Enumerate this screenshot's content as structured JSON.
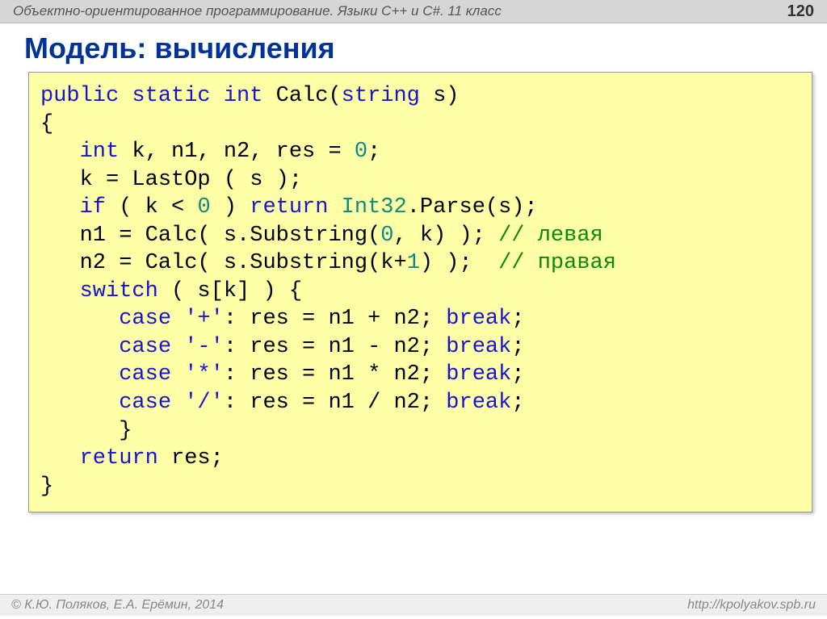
{
  "header": {
    "subject": "Объектно-ориентированное программирование. Языки C++ и C#. 11 класс",
    "page_number": "120"
  },
  "title": "Модель: вычисления",
  "code": {
    "tokens": [
      {
        "t": "public",
        "c": "kw"
      },
      {
        "t": " "
      },
      {
        "t": "static",
        "c": "kw"
      },
      {
        "t": " "
      },
      {
        "t": "int",
        "c": "kw"
      },
      {
        "t": " Calc("
      },
      {
        "t": "string",
        "c": "kw"
      },
      {
        "t": " s)\n"
      },
      {
        "t": "{\n"
      },
      {
        "t": "   "
      },
      {
        "t": "int",
        "c": "kw"
      },
      {
        "t": " k, n1, n2, res = "
      },
      {
        "t": "0",
        "c": "num"
      },
      {
        "t": ";\n"
      },
      {
        "t": "   k = LastOp ( s );\n"
      },
      {
        "t": "   "
      },
      {
        "t": "if",
        "c": "kw"
      },
      {
        "t": " ( k < "
      },
      {
        "t": "0",
        "c": "num"
      },
      {
        "t": " ) "
      },
      {
        "t": "return",
        "c": "kw"
      },
      {
        "t": " "
      },
      {
        "t": "Int32",
        "c": "cls"
      },
      {
        "t": ".Parse(s);\n"
      },
      {
        "t": "   n1 = Calc( s.Substring("
      },
      {
        "t": "0",
        "c": "num"
      },
      {
        "t": ", k) ); "
      },
      {
        "t": "// левая",
        "c": "comment"
      },
      {
        "t": "\n"
      },
      {
        "t": "   n2 = Calc( s.Substring(k+"
      },
      {
        "t": "1",
        "c": "num"
      },
      {
        "t": ") );  "
      },
      {
        "t": "// правая",
        "c": "comment"
      },
      {
        "t": "\n"
      },
      {
        "t": "   "
      },
      {
        "t": "switch",
        "c": "kw"
      },
      {
        "t": " ( s[k] ) {\n"
      },
      {
        "t": "      "
      },
      {
        "t": "case",
        "c": "kw"
      },
      {
        "t": " "
      },
      {
        "t": "'+'",
        "c": "str"
      },
      {
        "t": ": res = n1 + n2; "
      },
      {
        "t": "break",
        "c": "kw"
      },
      {
        "t": ";\n"
      },
      {
        "t": "      "
      },
      {
        "t": "case",
        "c": "kw"
      },
      {
        "t": " "
      },
      {
        "t": "'-'",
        "c": "str"
      },
      {
        "t": ": res = n1 - n2; "
      },
      {
        "t": "break",
        "c": "kw"
      },
      {
        "t": ";\n"
      },
      {
        "t": "      "
      },
      {
        "t": "case",
        "c": "kw"
      },
      {
        "t": " "
      },
      {
        "t": "'*'",
        "c": "str"
      },
      {
        "t": ": res = n1 * n2; "
      },
      {
        "t": "break",
        "c": "kw"
      },
      {
        "t": ";\n"
      },
      {
        "t": "      "
      },
      {
        "t": "case",
        "c": "kw"
      },
      {
        "t": " "
      },
      {
        "t": "'/'",
        "c": "str"
      },
      {
        "t": ": res = n1 / n2; "
      },
      {
        "t": "break",
        "c": "kw"
      },
      {
        "t": ";\n"
      },
      {
        "t": "      }\n"
      },
      {
        "t": "   "
      },
      {
        "t": "return",
        "c": "kw"
      },
      {
        "t": " res;\n"
      },
      {
        "t": "}"
      }
    ]
  },
  "footer": {
    "copyright": "© К.Ю. Поляков, Е.А. Ерёмин, 2014",
    "url": "http://kpolyakov.spb.ru"
  },
  "style": {
    "code_bg": "#ffffa8",
    "keyword_color": "#1414d2",
    "class_color": "#0e8a7e",
    "number_color": "#0e8a7e",
    "comment_color": "#0a8a0a",
    "title_color": "#003399",
    "code_font_size": 27
  }
}
